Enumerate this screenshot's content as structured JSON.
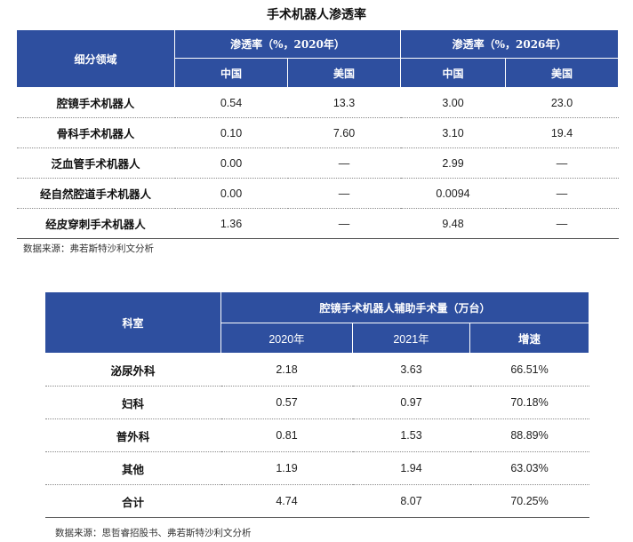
{
  "title": "手术机器人渗透率",
  "table1": {
    "row_header": "细分领域",
    "groups": [
      "渗透率（%，2020年）",
      "渗透率（%，2026年）"
    ],
    "subheaders": [
      "中国",
      "美国",
      "中国",
      "美国"
    ],
    "rows": [
      {
        "label": "腔镜手术机器人",
        "values": [
          "0.54",
          "13.3",
          "3.00",
          "23.0"
        ]
      },
      {
        "label": "骨科手术机器人",
        "values": [
          "0.10",
          "7.60",
          "3.10",
          "19.4"
        ]
      },
      {
        "label": "泛血管手术机器人",
        "values": [
          "0.00",
          "—",
          "2.99",
          "—"
        ]
      },
      {
        "label": "经自然腔道手术机器人",
        "values": [
          "0.00",
          "—",
          "0.0094",
          "—"
        ]
      },
      {
        "label": "经皮穿刺手术机器人",
        "values": [
          "1.36",
          "—",
          "9.48",
          "—"
        ]
      }
    ],
    "source": "数据来源：弗若斯特沙利文分析"
  },
  "table2": {
    "row_header": "科室",
    "group": "腔镜手术机器人辅助手术量（万台）",
    "subheaders": [
      "2020年",
      "2021年",
      "增速"
    ],
    "rows": [
      {
        "label": "泌尿外科",
        "values": [
          "2.18",
          "3.63",
          "66.51%"
        ]
      },
      {
        "label": "妇科",
        "values": [
          "0.57",
          "0.97",
          "70.18%"
        ]
      },
      {
        "label": "普外科",
        "values": [
          "0.81",
          "1.53",
          "88.89%"
        ]
      },
      {
        "label": "其他",
        "values": [
          "1.19",
          "1.94",
          "63.03%"
        ]
      },
      {
        "label": "合计",
        "values": [
          "4.74",
          "8.07",
          "70.25%"
        ]
      }
    ],
    "source": "数据来源：思哲睿招股书、弗若斯特沙利文分析"
  },
  "colors": {
    "header_bg": "#2e4f9f",
    "header_text": "#ffffff"
  }
}
